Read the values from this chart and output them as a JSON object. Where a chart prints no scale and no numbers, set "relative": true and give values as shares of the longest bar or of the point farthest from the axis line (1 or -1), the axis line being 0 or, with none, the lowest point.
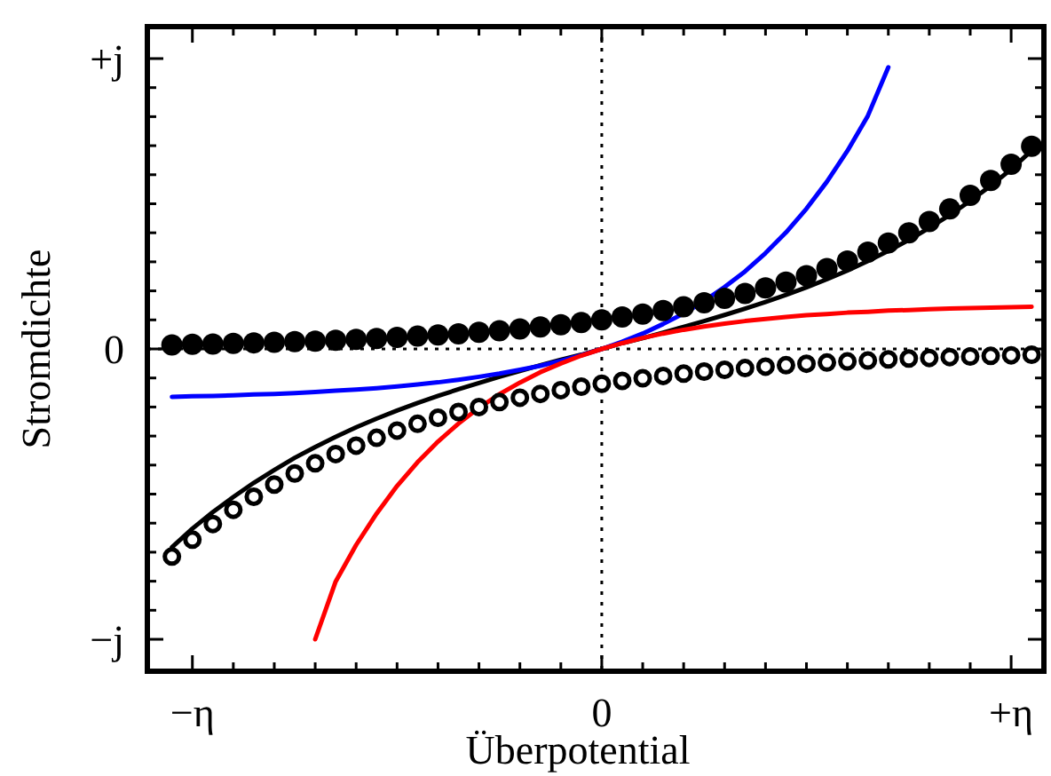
{
  "chart_data": {
    "type": "line",
    "xlabel": "Überpotential",
    "ylabel": "Stromdichte",
    "relative": true,
    "categories": [
      null,
      "−η",
      null,
      null,
      null,
      null,
      null,
      null,
      null,
      null,
      null,
      null,
      null,
      null,
      null,
      null,
      null,
      null,
      null,
      null,
      null,
      "0",
      null,
      null,
      null,
      null,
      null,
      null,
      null,
      null,
      null,
      null,
      null,
      null,
      null,
      null,
      null,
      null,
      null,
      null,
      null,
      "+η",
      null
    ],
    "annotations": [
      "−j",
      "0",
      "+j"
    ],
    "line_style": "solid",
    "ref_lines": [
      {
        "axis": "x",
        "value": "0",
        "color": "#000000",
        "line_style": "dotted"
      },
      {
        "axis": "y",
        "value": 0,
        "color": "#000000",
        "line_style": "dotted"
      }
    ],
    "series": [
      {
        "color": "#000000",
        "values": [
          -0.683,
          -0.619,
          -0.562,
          -0.51,
          -0.461,
          -0.417,
          -0.375,
          -0.338,
          -0.303,
          -0.27,
          -0.24,
          -0.212,
          -0.186,
          -0.162,
          -0.139,
          -0.117,
          -0.096,
          -0.076,
          -0.056,
          -0.037,
          -0.02,
          0,
          0.02,
          0.037,
          0.056,
          0.076,
          0.096,
          0.117,
          0.139,
          0.162,
          0.186,
          0.212,
          0.24,
          0.27,
          0.303,
          0.338,
          0.375,
          0.417,
          0.461,
          0.51,
          0.562,
          0.619,
          0.683
        ]
      },
      {
        "type": "line",
        "color": "#0000ff",
        "values": [
          -0.165,
          -0.163,
          -0.162,
          -0.16,
          -0.157,
          -0.155,
          -0.152,
          -0.148,
          -0.144,
          -0.14,
          -0.135,
          -0.129,
          -0.122,
          -0.115,
          -0.106,
          -0.096,
          -0.085,
          -0.072,
          -0.058,
          -0.041,
          -0.022,
          0,
          0.025,
          0.053,
          0.086,
          0.122,
          0.165,
          0.213,
          0.267,
          0.33,
          0.401,
          0.483,
          0.576,
          0.682,
          0.803,
          0.97,
          null,
          null,
          null,
          null,
          null,
          null,
          null
        ]
      },
      {
        "type": "line",
        "color": "#ff0000",
        "values": [
          null,
          null,
          null,
          null,
          null,
          null,
          null,
          -1,
          -0.801,
          -0.675,
          -0.567,
          -0.472,
          -0.39,
          -0.319,
          -0.257,
          -0.203,
          -0.156,
          -0.116,
          -0.08,
          -0.05,
          -0.023,
          0,
          0.02,
          0.038,
          0.053,
          0.066,
          0.077,
          0.087,
          0.096,
          0.103,
          0.11,
          0.116,
          0.12,
          0.125,
          0.128,
          0.132,
          0.134,
          0.137,
          0.139,
          0.141,
          0.142,
          0.144,
          0.145
        ]
      },
      {
        "type": "scatter",
        "color": "#000000",
        "marker": "circle",
        "values": [
          0.014,
          0.016,
          0.017,
          0.019,
          0.021,
          0.023,
          0.025,
          0.027,
          0.03,
          0.033,
          0.036,
          0.04,
          0.044,
          0.048,
          0.052,
          0.057,
          0.063,
          0.069,
          0.076,
          0.083,
          0.091,
          0.1,
          0.11,
          0.12,
          0.132,
          0.145,
          0.159,
          0.174,
          0.191,
          0.21,
          0.23,
          0.252,
          0.277,
          0.303,
          0.333,
          0.365,
          0.4,
          0.439,
          0.482,
          0.529,
          0.58,
          0.636,
          0.698
        ]
      },
      {
        "type": "scatter",
        "color": "#000000",
        "marker": "circle",
        "values": [
          -0.715,
          -0.657,
          -0.603,
          -0.554,
          -0.509,
          -0.467,
          -0.429,
          -0.394,
          -0.362,
          -0.333,
          -0.306,
          -0.281,
          -0.258,
          -0.237,
          -0.217,
          -0.2,
          -0.183,
          -0.168,
          -0.155,
          -0.142,
          -0.13,
          -0.12,
          -0.11,
          -0.101,
          -0.093,
          -0.085,
          -0.078,
          -0.072,
          -0.066,
          -0.061,
          -0.056,
          -0.051,
          -0.047,
          -0.043,
          -0.04,
          -0.036,
          -0.033,
          -0.031,
          -0.028,
          -0.026,
          -0.024,
          -0.022,
          -0.02
        ]
      }
    ]
  }
}
